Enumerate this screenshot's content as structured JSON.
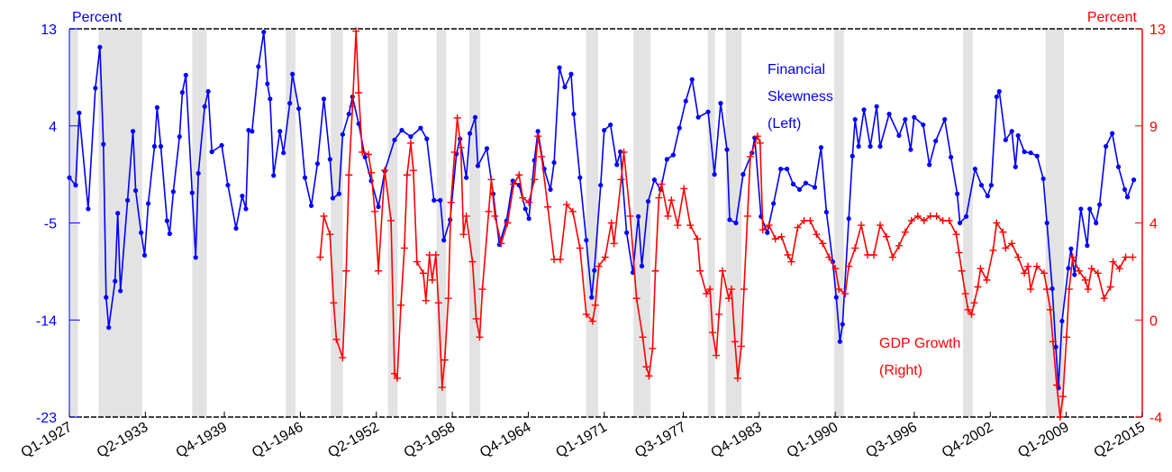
{
  "chart_data": {
    "type": "line",
    "xlim": [
      1927,
      2015.25
    ],
    "xticks": [
      {
        "value": 1927,
        "label": "Q1-1927"
      },
      {
        "value": 1933.25,
        "label": "Q2-1933"
      },
      {
        "value": 1939.75,
        "label": "Q4-1939"
      },
      {
        "value": 1946,
        "label": "Q1-1946"
      },
      {
        "value": 1952.25,
        "label": "Q2-1952"
      },
      {
        "value": 1958.5,
        "label": "Q3-1958"
      },
      {
        "value": 1964.75,
        "label": "Q4-1964"
      },
      {
        "value": 1971,
        "label": "Q1-1971"
      },
      {
        "value": 1977.5,
        "label": "Q3-1977"
      },
      {
        "value": 1983.75,
        "label": "Q4-1983"
      },
      {
        "value": 1990,
        "label": "Q1-1990"
      },
      {
        "value": 1996.5,
        "label": "Q3-1996"
      },
      {
        "value": 2002.75,
        "label": "Q4-2002"
      },
      {
        "value": 2009,
        "label": "Q1-2009"
      },
      {
        "value": 2015.25,
        "label": "Q2-2015"
      }
    ],
    "ylim": [
      -23,
      13
    ],
    "yticks": [
      13,
      4,
      -5,
      -14,
      -23
    ],
    "ylabel": "Percent",
    "ycolor": "#0000ff",
    "y2lim": [
      -4,
      13
    ],
    "y2ticks": [
      13,
      {
        "value": 8.75,
        "label": "9"
      },
      {
        "value": 4.5,
        "label": "4"
      },
      {
        "value": 0.25,
        "label": "0"
      },
      -4
    ],
    "y2label": "Percent",
    "y2color": "#ff0000",
    "shaded_periods": [
      [
        1927.0,
        1927.7
      ],
      [
        1929.4,
        1933.0
      ],
      [
        1937.1,
        1938.3
      ],
      [
        1944.8,
        1945.6
      ],
      [
        1948.5,
        1949.5
      ],
      [
        1953.2,
        1954.0
      ],
      [
        1957.2,
        1958.0
      ],
      [
        1959.9,
        1960.8
      ],
      [
        1969.5,
        1970.5
      ],
      [
        1973.4,
        1974.8
      ],
      [
        1979.5,
        1980.1
      ],
      [
        1981.0,
        1982.3
      ],
      [
        1989.9,
        1990.7
      ],
      [
        2000.5,
        2001.3
      ],
      [
        2007.3,
        2008.8
      ]
    ],
    "shade_color": "#e3e3e3",
    "series": [
      {
        "label_lines": [
          "Financial",
          "Skewness",
          "(Left)"
        ],
        "color": "#0000ff",
        "marker": "dot",
        "axis": "y",
        "x": [
          1927.0,
          1927.52,
          1927.81,
          1928.55,
          1929.14,
          1929.51,
          1929.8,
          1930.02,
          1930.24,
          1930.76,
          1930.98,
          1931.2,
          1931.79,
          1932.23,
          1932.45,
          1932.9,
          1933.19,
          1933.49,
          1934.0,
          1934.22,
          1934.52,
          1935.03,
          1935.25,
          1935.55,
          1936.06,
          1936.29,
          1936.58,
          1937.1,
          1937.39,
          1937.61,
          1938.13,
          1938.42,
          1938.72,
          1939.53,
          1940.04,
          1940.71,
          1941.22,
          1941.52,
          1941.74,
          1942.03,
          1942.55,
          1942.99,
          1943.29,
          1943.51,
          1943.8,
          1944.32,
          1944.61,
          1945.13,
          1945.35,
          1945.87,
          1946.38,
          1946.9,
          1947.41,
          1947.93,
          1948.44,
          1948.67,
          1949.18,
          1949.48,
          1949.99,
          1950.29,
          1950.8,
          1951.32,
          1951.83,
          1952.42,
          1952.94,
          1953.75,
          1954.34,
          1955.08,
          1955.89,
          1956.4,
          1956.99,
          1957.51,
          1957.8,
          1958.32,
          1958.84,
          1959.13,
          1959.65,
          1959.94,
          1960.38,
          1960.6,
          1961.34,
          1961.86,
          1962.37,
          1962.96,
          1963.48,
          1963.99,
          1964.51,
          1964.8,
          1965.25,
          1965.54,
          1966.06,
          1966.57,
          1966.87,
          1967.31,
          1967.75,
          1968.27,
          1968.49,
          1969.0,
          1969.52,
          1969.96,
          1970.18,
          1970.7,
          1970.99,
          1971.51,
          1972.03,
          1972.32,
          1972.84,
          1973.35,
          1973.8,
          1974.09,
          1974.61,
          1975.12,
          1975.64,
          1976.15,
          1976.67,
          1977.18,
          1977.7,
          1978.22,
          1978.73,
          1979.54,
          1980.06,
          1980.57,
          1981.09,
          1981.31,
          1981.83,
          1982.42,
          1983.15,
          1983.37,
          1983.89,
          1984.41,
          1984.92,
          1985.51,
          1986.03,
          1986.54,
          1987.06,
          1987.57,
          1988.31,
          1988.83,
          1989.27,
          1989.79,
          1990.08,
          1990.38,
          1990.6,
          1991.11,
          1991.41,
          1991.63,
          1991.92,
          1992.36,
          1992.88,
          1993.4,
          1993.69,
          1994.43,
          1995.24,
          1995.75,
          1996.2,
          1996.49,
          1997.23,
          1997.74,
          1998.26,
          1999.0,
          1999.51,
          2000.03,
          2000.25,
          2000.77,
          2001.5,
          2002.02,
          2002.53,
          2002.83,
          2003.27,
          2003.49,
          2004.01,
          2004.52,
          2004.82,
          2005.04,
          2005.55,
          2006.07,
          2006.6,
          2007.11,
          2007.41,
          2007.85,
          2008.14,
          2008.36,
          2008.65,
          2009.17,
          2009.39,
          2009.68,
          2010.2,
          2010.72,
          2010.93,
          2011.45,
          2011.74,
          2012.26,
          2012.78,
          2013.29,
          2013.81,
          2014.03,
          2014.55
        ],
        "values": [
          -0.8,
          -1.5,
          5.2,
          -3.7,
          7.5,
          11.3,
          2.3,
          -11.9,
          -14.7,
          -10.4,
          -4.1,
          -11.3,
          -2.9,
          3.5,
          -2.0,
          -5.9,
          -8.0,
          -3.2,
          2.1,
          5.7,
          2.1,
          -4.8,
          -6.0,
          -2.1,
          3.0,
          7.1,
          8.7,
          -2.2,
          -8.2,
          -0.4,
          5.8,
          7.2,
          1.6,
          2.2,
          -1.5,
          -5.5,
          -2.5,
          -3.7,
          3.6,
          3.5,
          9.5,
          12.7,
          7.9,
          6.5,
          -0.6,
          3.5,
          1.5,
          6.1,
          8.8,
          5.6,
          -0.8,
          -3.4,
          0.5,
          6.5,
          0.9,
          -2.7,
          -2.3,
          3.2,
          5.1,
          6.7,
          4.2,
          1.1,
          -1.1,
          -3.5,
          -0.2,
          2.7,
          3.6,
          3.0,
          3.8,
          2.8,
          -2.9,
          -2.9,
          -6.6,
          -4.7,
          1.4,
          2.8,
          -0.8,
          3.3,
          4.8,
          0.3,
          1.9,
          -2.3,
          -7.0,
          -4.8,
          -1.1,
          -1.5,
          -3.7,
          -4.6,
          0.8,
          3.5,
          0.0,
          -1.9,
          0.6,
          9.4,
          7.6,
          8.8,
          5.1,
          -0.8,
          -6.6,
          -11.9,
          -9.4,
          -1.5,
          3.6,
          4.1,
          0.4,
          1.6,
          -5.9,
          -9.6,
          -4.4,
          -9.0,
          -3.0,
          -1.0,
          -1.9,
          0.9,
          1.3,
          3.8,
          6.3,
          8.3,
          4.8,
          5.3,
          -0.5,
          6.1,
          1.8,
          -4.7,
          -5.0,
          -0.5,
          1.5,
          2.9,
          -4.4,
          -5.9,
          -3.2,
          0.0,
          0.0,
          -1.4,
          -1.9,
          -1.3,
          -1.7,
          2.0,
          -4.0,
          -8.6,
          -11.9,
          -16.0,
          -14.4,
          -4.6,
          1.2,
          4.6,
          2.1,
          5.5,
          2.1,
          5.8,
          2.1,
          5.1,
          3.1,
          4.6,
          1.8,
          4.8,
          4.1,
          0.4,
          2.6,
          4.6,
          1.1,
          -2.3,
          -5.0,
          -4.4,
          0.0,
          -1.5,
          -2.5,
          -1.5,
          6.7,
          7.2,
          2.7,
          3.5,
          0.2,
          3.1,
          1.6,
          1.5,
          1.2,
          -0.9,
          -5.0,
          -11.1,
          -16.5,
          -20.3,
          -14.1,
          -9.2,
          -7.4,
          -9.8,
          -3.7,
          -7.1,
          -3.7,
          -5.0,
          -3.3,
          2.1,
          3.3,
          0.2,
          -1.9,
          -2.6,
          -1.0
        ]
      },
      {
        "label_lines": [
          "GDP Growth",
          "(Right)"
        ],
        "color": "#ff0000",
        "marker": "plus",
        "axis": "y2",
        "x": [
          1947.63,
          1947.93,
          1948.44,
          1948.74,
          1948.96,
          1949.48,
          1949.77,
          1949.99,
          1950.29,
          1950.58,
          1950.8,
          1951.1,
          1951.61,
          1951.83,
          1952.13,
          1952.42,
          1952.94,
          1953.46,
          1953.75,
          1953.97,
          1954.27,
          1954.56,
          1954.78,
          1955.08,
          1955.3,
          1955.59,
          1956.11,
          1956.33,
          1956.62,
          1956.85,
          1957.14,
          1957.36,
          1957.66,
          1957.88,
          1958.17,
          1958.39,
          1958.69,
          1958.91,
          1959.2,
          1959.42,
          1959.65,
          1960.16,
          1960.46,
          1960.75,
          1960.97,
          1961.49,
          1961.71,
          1962.0,
          1962.52,
          1963.04,
          1963.55,
          1963.99,
          1964.29,
          1964.8,
          1965.25,
          1965.54,
          1965.84,
          1966.35,
          1966.87,
          1967.38,
          1967.9,
          1968.41,
          1969.0,
          1969.52,
          1970.04,
          1970.26,
          1970.55,
          1971.07,
          1971.58,
          1971.8,
          1972.39,
          1972.61,
          1973.13,
          1973.65,
          1974.16,
          1974.46,
          1974.68,
          1974.97,
          1975.2,
          1975.49,
          1975.71,
          1976.23,
          1976.52,
          1977.04,
          1977.55,
          1978.07,
          1978.66,
          1978.88,
          1979.4,
          1979.69,
          1979.91,
          1980.21,
          1980.43,
          1980.72,
          1981.24,
          1981.46,
          1981.75,
          1981.97,
          1982.27,
          1982.49,
          1982.78,
          1983.01,
          1983.6,
          1983.82,
          1984.04,
          1984.55,
          1985.07,
          1985.58,
          1986.1,
          1986.39,
          1986.91,
          1987.43,
          1987.94,
          1988.46,
          1988.97,
          1989.49,
          1990.01,
          1990.3,
          1990.82,
          1991.11,
          1991.63,
          1992.14,
          1992.66,
          1993.17,
          1993.69,
          1994.21,
          1994.72,
          1995.24,
          1995.75,
          1996.27,
          1996.79,
          1997.3,
          1997.82,
          1998.33,
          1998.85,
          1999.37,
          1999.96,
          2000.18,
          2000.4,
          2000.7,
          2000.92,
          2001.21,
          2001.43,
          2001.73,
          2001.95,
          2002.46,
          2002.98,
          2003.27,
          2003.79,
          2004.01,
          2004.52,
          2005.04,
          2005.55,
          2005.85,
          2006.07,
          2006.58,
          2007.18,
          2007.4,
          2007.69,
          2007.91,
          2008.21,
          2008.5,
          2008.72,
          2009.02,
          2009.24,
          2009.53,
          2010.05,
          2010.57,
          2010.79,
          2011.08,
          2011.6,
          2012.11,
          2012.63,
          2012.85,
          2013.37,
          2013.88,
          2014.47
        ],
        "values": [
          3.0,
          4.8,
          4.0,
          1.0,
          -0.6,
          -1.4,
          2.4,
          6.6,
          9.6,
          12.9,
          10.2,
          7.6,
          7.5,
          6.7,
          5.0,
          2.4,
          6.8,
          4.6,
          -2.1,
          -2.3,
          0.9,
          3.4,
          6.6,
          8.0,
          6.8,
          2.8,
          2.3,
          1.1,
          3.1,
          2.0,
          3.1,
          1.0,
          -2.7,
          -1.5,
          1.2,
          5.4,
          7.6,
          9.1,
          7.8,
          4.0,
          4.8,
          2.8,
          0.3,
          -0.5,
          1.6,
          5.0,
          6.4,
          4.8,
          3.6,
          4.5,
          6.2,
          6.6,
          5.6,
          5.4,
          6.4,
          8.3,
          7.4,
          5.2,
          2.9,
          2.9,
          5.3,
          5.0,
          3.4,
          0.5,
          0.2,
          0.9,
          2.6,
          3.0,
          4.5,
          3.6,
          6.4,
          7.6,
          4.8,
          1.2,
          -0.5,
          -1.8,
          -2.2,
          -1.0,
          2.4,
          5.6,
          6.2,
          4.8,
          5.5,
          4.4,
          6.0,
          4.4,
          3.8,
          2.4,
          1.4,
          1.6,
          -0.3,
          -1.3,
          0.5,
          2.4,
          1.2,
          1.6,
          -0.7,
          -2.3,
          -0.9,
          1.6,
          4.8,
          7.4,
          8.3,
          8.0,
          4.2,
          4.4,
          3.8,
          3.9,
          3.1,
          2.8,
          4.3,
          4.6,
          4.6,
          4.0,
          3.6,
          3.0,
          2.5,
          1.6,
          1.4,
          2.6,
          3.4,
          4.4,
          3.1,
          3.1,
          4.4,
          3.9,
          3.0,
          3.5,
          4.1,
          4.6,
          4.8,
          4.6,
          4.8,
          4.8,
          4.6,
          4.6,
          4.0,
          3.2,
          2.4,
          1.4,
          0.7,
          0.5,
          1.0,
          1.7,
          2.5,
          2.0,
          3.3,
          4.5,
          4.1,
          3.4,
          3.6,
          3.0,
          2.3,
          2.6,
          1.6,
          2.6,
          2.3,
          1.6,
          0.7,
          -0.7,
          -2.6,
          -4.0,
          -3.1,
          -0.5,
          1.6,
          3.0,
          2.4,
          2.0,
          1.6,
          2.5,
          2.3,
          1.2,
          1.7,
          2.8,
          2.5,
          3.0,
          3.0
        ]
      }
    ]
  }
}
